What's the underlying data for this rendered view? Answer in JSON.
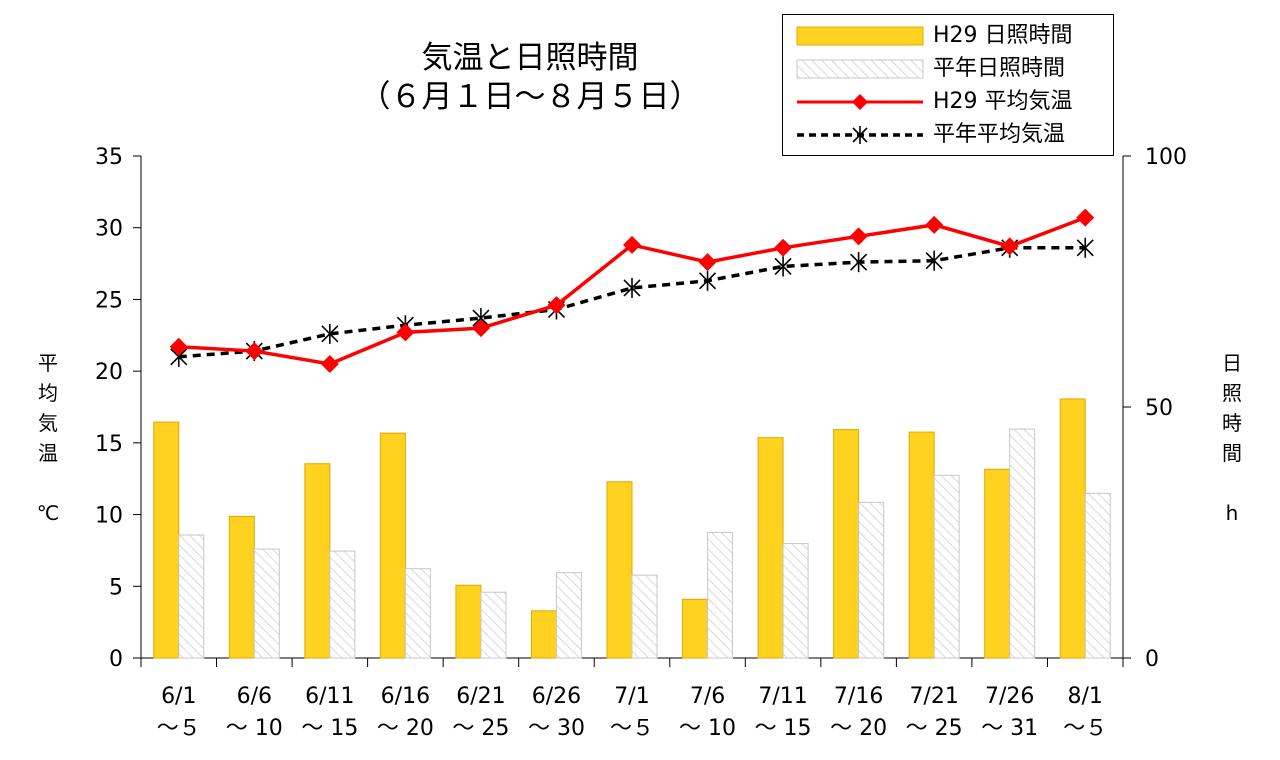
{
  "title_line1": "気温と日照時間",
  "title_line2": "（６月１日〜８月５日）",
  "left_axis_label": [
    "平",
    "均",
    "気",
    "温",
    "",
    "℃"
  ],
  "right_axis_label": [
    "日",
    "照",
    "時",
    "間",
    "",
    "h"
  ],
  "legend": [
    {
      "label": "H29 日照時間",
      "type": "bar",
      "color": "#FFD21F"
    },
    {
      "label": "平年日照時間",
      "type": "bar-hatched",
      "color": "#DADADA"
    },
    {
      "label": "H29 平均気温",
      "type": "line-diamond",
      "color": "#FF0000"
    },
    {
      "label": "平年平均気温",
      "type": "line-dashed-star",
      "color": "#000000"
    }
  ],
  "chart_data": {
    "type": "bar+line",
    "categories": [
      [
        "6/1",
        "〜５"
      ],
      [
        "6/6",
        "〜 10"
      ],
      [
        "6/11",
        "〜 15"
      ],
      [
        "6/16",
        "〜 20"
      ],
      [
        "6/21",
        "〜 25"
      ],
      [
        "6/26",
        "〜 30"
      ],
      [
        "7/1",
        "〜５"
      ],
      [
        "7/6",
        "〜 10"
      ],
      [
        "7/11",
        "〜 15"
      ],
      [
        "7/16",
        "〜 20"
      ],
      [
        "7/21",
        "〜 25"
      ],
      [
        "7/26",
        "〜 31"
      ],
      [
        "8/1",
        "〜５"
      ]
    ],
    "left_axis": {
      "min": 0,
      "max": 35,
      "ticks": [
        0,
        5,
        10,
        15,
        20,
        25,
        30,
        35
      ]
    },
    "right_axis": {
      "min": 0,
      "max": 100,
      "ticks": [
        0,
        50,
        100
      ]
    },
    "bar_series": [
      {
        "name": "H29 日照時間",
        "axis": "right",
        "values": [
          47.0,
          28.2,
          38.7,
          44.8,
          14.5,
          9.4,
          35.1,
          11.7,
          43.9,
          45.5,
          45.0,
          37.6,
          51.6
        ]
      },
      {
        "name": "平年日照時間",
        "axis": "right",
        "values": [
          24.5,
          21.7,
          21.3,
          17.8,
          13.1,
          17.0,
          16.5,
          25.0,
          22.8,
          31.0,
          36.4,
          45.6,
          32.8
        ]
      }
    ],
    "line_series": [
      {
        "name": "H29 平均気温",
        "axis": "left",
        "values": [
          21.7,
          21.4,
          20.5,
          22.7,
          23.0,
          24.6,
          28.8,
          27.6,
          28.6,
          29.4,
          30.2,
          28.7,
          30.7
        ]
      },
      {
        "name": "平年平均気温",
        "axis": "left",
        "values": [
          21.0,
          21.4,
          22.6,
          23.2,
          23.7,
          24.3,
          25.8,
          26.3,
          27.3,
          27.6,
          27.7,
          28.6,
          28.6
        ]
      }
    ]
  }
}
